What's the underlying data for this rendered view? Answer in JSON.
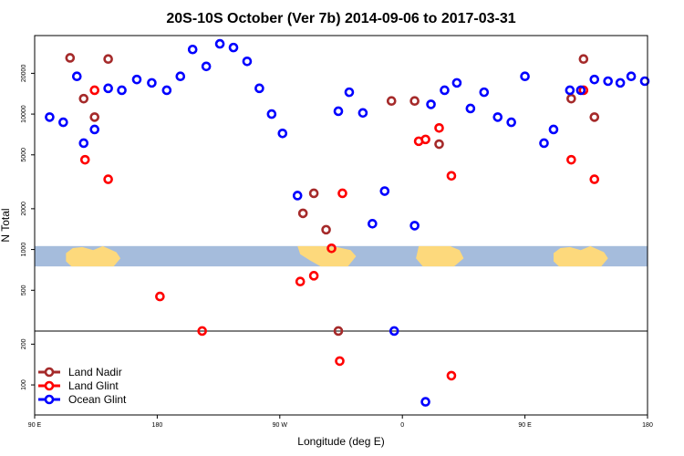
{
  "chart_data": {
    "type": "scatter",
    "title": "20S-10S October (Ver 7b)   2014-09-06 to 2017-03-31",
    "xlabel": "Longitude (deg E)",
    "ylabel": "N Total",
    "x_unrolled_range": [
      90,
      540
    ],
    "y_log_range": [
      60,
      38000
    ],
    "y_scale": "log",
    "grid": false,
    "x_ticks": [
      {
        "value": 90,
        "label": "90 E"
      },
      {
        "value": 180,
        "label": "180"
      },
      {
        "value": 270,
        "label": "90 W"
      },
      {
        "value": 360,
        "label": "0"
      },
      {
        "value": 450,
        "label": "90 E"
      },
      {
        "value": 540,
        "label": "180"
      }
    ],
    "y_ticks": [
      {
        "value": 100,
        "label": "100"
      },
      {
        "value": 200,
        "label": "200"
      },
      {
        "value": 500,
        "label": "500"
      },
      {
        "value": 1000,
        "label": "1000"
      },
      {
        "value": 2000,
        "label": "2000"
      },
      {
        "value": 5000,
        "label": "5000"
      },
      {
        "value": 10000,
        "label": "10000"
      },
      {
        "value": 20000,
        "label": "20000"
      }
    ],
    "reference_line_y": 250,
    "inset_map": {
      "band_y": [
        750,
        1060
      ],
      "ocean_color": "#a5bcdc",
      "land_color": "#fdd97c"
    },
    "legend_position": "bottom-left",
    "series": [
      {
        "name": "Land Nadir",
        "color": "#a52a2a",
        "points": [
          [
            116,
            26000
          ],
          [
            126,
            13000
          ],
          [
            144,
            25500
          ],
          [
            134,
            9500
          ],
          [
            287,
            1850
          ],
          [
            295,
            2600
          ],
          [
            304,
            1400
          ],
          [
            313,
            250
          ],
          [
            352,
            12500
          ],
          [
            369,
            12500
          ],
          [
            387,
            6000
          ],
          [
            484,
            13000
          ],
          [
            493,
            25500
          ],
          [
            501,
            9500
          ]
        ]
      },
      {
        "name": "Land Glint",
        "color": "#ff0000",
        "points": [
          [
            127,
            4600
          ],
          [
            134,
            15000
          ],
          [
            144,
            3300
          ],
          [
            182,
            450
          ],
          [
            213,
            250
          ],
          [
            285,
            580
          ],
          [
            295,
            640
          ],
          [
            308,
            1020
          ],
          [
            316,
            2600
          ],
          [
            314,
            150
          ],
          [
            372,
            6300
          ],
          [
            377,
            6500
          ],
          [
            387,
            7900
          ],
          [
            396,
            3500
          ],
          [
            396,
            117
          ],
          [
            484,
            4600
          ],
          [
            493,
            15000
          ],
          [
            501,
            3300
          ]
        ]
      },
      {
        "name": "Ocean Glint",
        "color": "#0000ff",
        "points": [
          [
            101,
            9500
          ],
          [
            111,
            8700
          ],
          [
            121,
            19000
          ],
          [
            126,
            6100
          ],
          [
            134,
            7700
          ],
          [
            144,
            15500
          ],
          [
            154,
            15000
          ],
          [
            165,
            18000
          ],
          [
            176,
            17000
          ],
          [
            187,
            15000
          ],
          [
            197,
            19000
          ],
          [
            206,
            30000
          ],
          [
            216,
            22500
          ],
          [
            226,
            33000
          ],
          [
            236,
            31000
          ],
          [
            246,
            24500
          ],
          [
            255,
            15500
          ],
          [
            264,
            10000
          ],
          [
            272,
            7200
          ],
          [
            283,
            2500
          ],
          [
            313,
            10500
          ],
          [
            321,
            14500
          ],
          [
            331,
            10200
          ],
          [
            338,
            1550
          ],
          [
            347,
            2700
          ],
          [
            354,
            250
          ],
          [
            369,
            1500
          ],
          [
            381,
            11800
          ],
          [
            391,
            15000
          ],
          [
            400,
            17000
          ],
          [
            410,
            11000
          ],
          [
            420,
            14500
          ],
          [
            430,
            9500
          ],
          [
            440,
            8700
          ],
          [
            450,
            19000
          ],
          [
            464,
            6100
          ],
          [
            471,
            7700
          ],
          [
            483,
            15000
          ],
          [
            491,
            15000
          ],
          [
            501,
            18000
          ],
          [
            511,
            17500
          ],
          [
            520,
            17000
          ],
          [
            528,
            19000
          ],
          [
            538,
            17500
          ],
          [
            377,
            75
          ]
        ]
      }
    ]
  }
}
